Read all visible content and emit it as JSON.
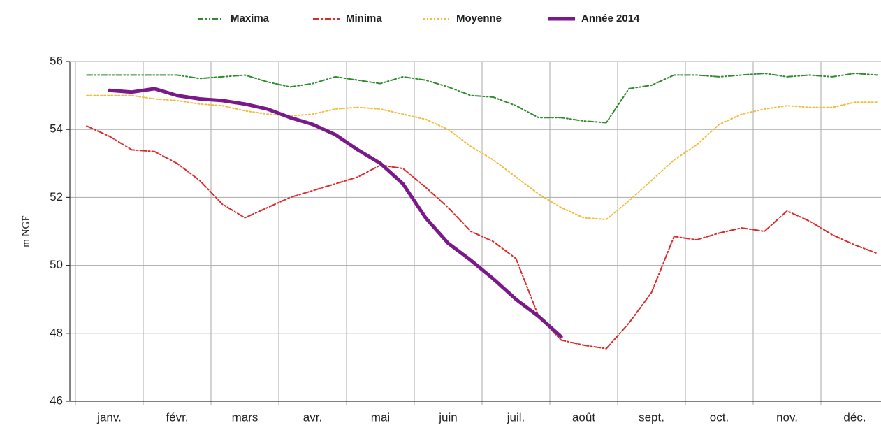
{
  "chart_data": {
    "type": "line",
    "y_label": "m NGF",
    "categories": [
      null,
      "janv.",
      null,
      null,
      "févr.",
      null,
      null,
      "mars",
      null,
      null,
      "avr.",
      null,
      null,
      "mai",
      null,
      null,
      "juin",
      null,
      null,
      "juil.",
      null,
      null,
      "août",
      null,
      null,
      "sept.",
      null,
      null,
      "oct.",
      null,
      null,
      "nov.",
      null,
      null,
      "déc.",
      null
    ],
    "series": [
      {
        "name": "Maxima",
        "color": "#2e8b2e",
        "line_style": "dash-dot-dot",
        "values": [
          55.6,
          55.6,
          55.6,
          55.6,
          55.6,
          55.5,
          55.55,
          55.6,
          55.4,
          55.25,
          55.35,
          55.55,
          55.45,
          55.35,
          55.55,
          55.45,
          55.25,
          55.0,
          54.95,
          54.7,
          54.35,
          54.35,
          54.25,
          54.2,
          55.2,
          55.3,
          55.6,
          55.6,
          55.55,
          55.6,
          55.65,
          55.55,
          55.6,
          55.55,
          55.65,
          55.6
        ]
      },
      {
        "name": "Minima",
        "color": "#dd2a2a",
        "line_style": "dash-dot",
        "values": [
          54.1,
          53.8,
          53.4,
          53.35,
          53.0,
          52.5,
          51.8,
          51.4,
          51.7,
          52.0,
          52.2,
          52.4,
          52.6,
          52.95,
          52.85,
          52.3,
          51.7,
          51.0,
          50.7,
          50.2,
          48.5,
          47.8,
          47.65,
          47.55,
          48.3,
          49.2,
          50.85,
          50.75,
          50.95,
          51.1,
          51.0,
          51.6,
          51.3,
          50.9,
          50.6,
          50.35
        ]
      },
      {
        "name": "Moyenne",
        "color": "#f0bc3c",
        "line_style": "dotted",
        "values": [
          55.0,
          55.0,
          55.0,
          54.9,
          54.85,
          54.75,
          54.7,
          54.55,
          54.45,
          54.4,
          54.45,
          54.6,
          54.65,
          54.6,
          54.45,
          54.3,
          54.0,
          53.5,
          53.1,
          52.6,
          52.1,
          51.7,
          51.4,
          51.35,
          51.9,
          52.5,
          53.1,
          53.55,
          54.15,
          54.45,
          54.6,
          54.7,
          54.65,
          54.65,
          54.8,
          54.8
        ]
      },
      {
        "name": "Année 2014",
        "color": "#7a1a8a",
        "line_style": "solid",
        "values": [
          null,
          55.15,
          55.1,
          55.2,
          55.0,
          54.9,
          54.85,
          54.75,
          54.6,
          54.35,
          54.15,
          53.85,
          53.4,
          53.0,
          52.4,
          51.4,
          50.65,
          50.15,
          49.6,
          49.0,
          48.5,
          47.9,
          null,
          null,
          null,
          null,
          null,
          null,
          null,
          null,
          null,
          null,
          null,
          null,
          null,
          null
        ]
      }
    ],
    "ylim": [
      46,
      56
    ],
    "yticks": [
      46,
      48,
      50,
      52,
      54,
      56
    ],
    "grid": true,
    "legend": "top"
  }
}
